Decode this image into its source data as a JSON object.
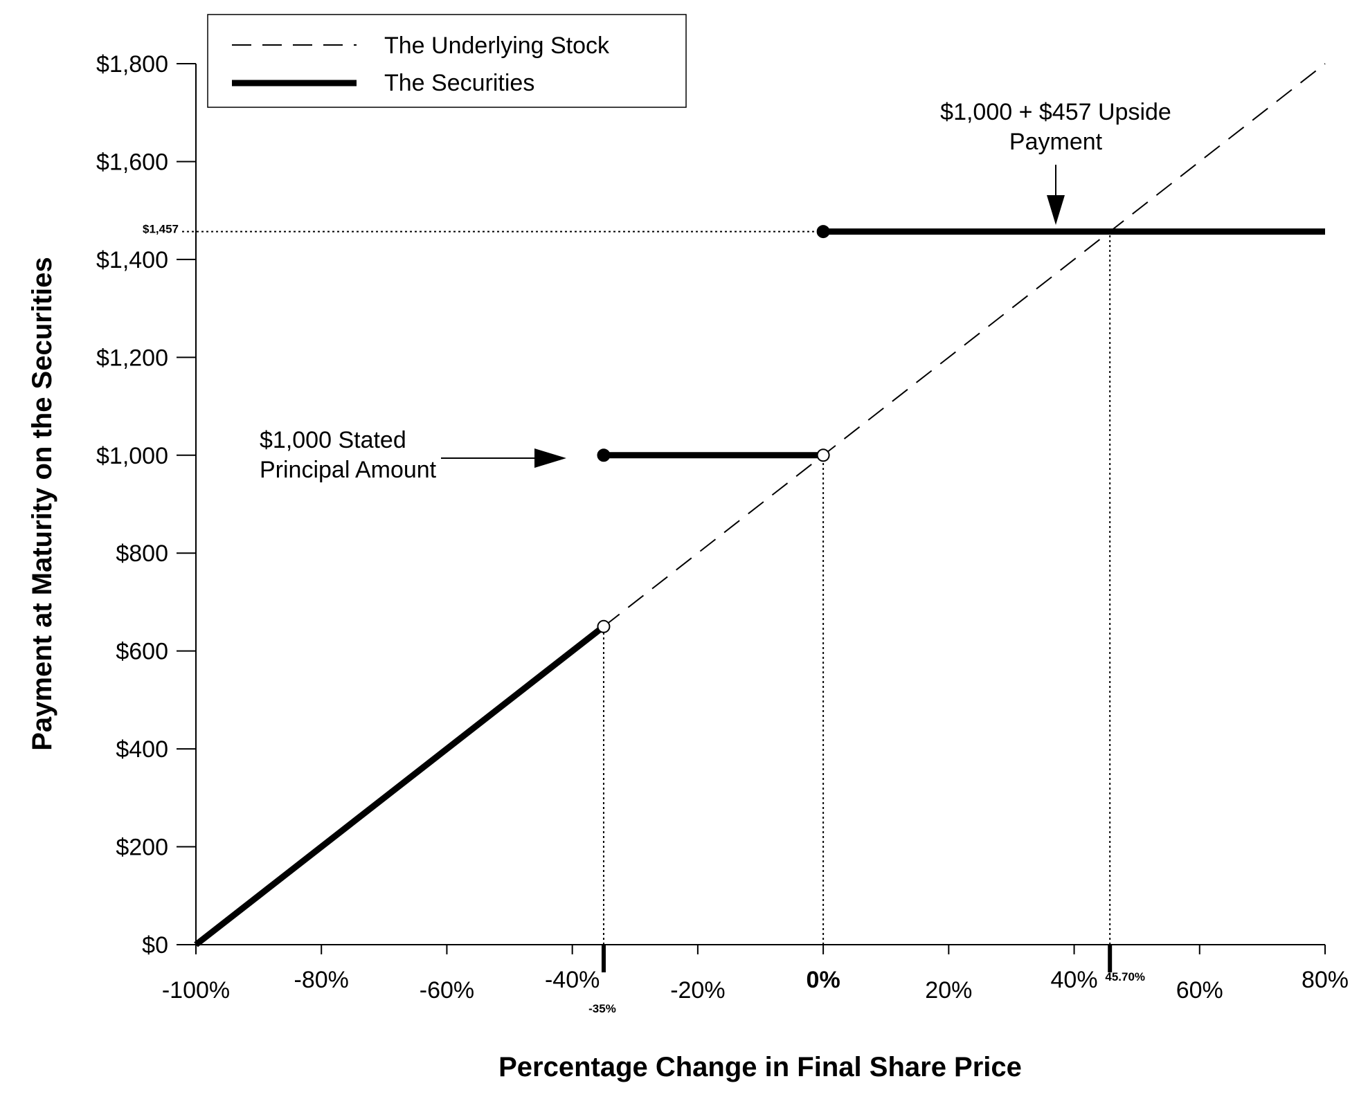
{
  "chart_data": {
    "type": "line",
    "title": "",
    "xlabel": "Percentage Change in Final Share Price",
    "ylabel": "Payment at Maturity on the Securities",
    "xlim": [
      -100,
      80
    ],
    "ylim": [
      0,
      1800
    ],
    "grid": false,
    "legend_position": "top-left",
    "x_ticks": [
      {
        "value": -100,
        "label": "-100%"
      },
      {
        "value": -80,
        "label": "-80%"
      },
      {
        "value": -60,
        "label": "-60%"
      },
      {
        "value": -40,
        "label": "-40%"
      },
      {
        "value": -20,
        "label": "-20%"
      },
      {
        "value": 0,
        "label": "0%"
      },
      {
        "value": 20,
        "label": "20%"
      },
      {
        "value": 40,
        "label": "40%"
      },
      {
        "value": 60,
        "label": "60%"
      },
      {
        "value": 80,
        "label": "80%"
      }
    ],
    "y_ticks": [
      {
        "value": 0,
        "label": "$0"
      },
      {
        "value": 200,
        "label": "$200"
      },
      {
        "value": 400,
        "label": "$400"
      },
      {
        "value": 600,
        "label": "$600"
      },
      {
        "value": 800,
        "label": "$800"
      },
      {
        "value": 1000,
        "label": "$1,000"
      },
      {
        "value": 1200,
        "label": "$1,200"
      },
      {
        "value": 1400,
        "label": "$1,400"
      },
      {
        "value": 1600,
        "label": "$1,600"
      },
      {
        "value": 1800,
        "label": "$1,800"
      }
    ],
    "extra_x_ticks": [
      {
        "value": -35,
        "label": "-35%"
      },
      {
        "value": 45.7,
        "label": "45.70%"
      }
    ],
    "extra_y_ticks": [
      {
        "value": 1457,
        "label": "$1,457"
      }
    ],
    "series": [
      {
        "name": "The Underlying Stock",
        "style": "dashed",
        "points": [
          [
            -100,
            0
          ],
          [
            80,
            1800
          ]
        ]
      },
      {
        "name": "The Securities",
        "style": "thick",
        "segments": [
          {
            "points": [
              [
                -100,
                0
              ],
              [
                -35,
                650
              ]
            ],
            "end_markers": [
              "none",
              "open"
            ]
          },
          {
            "points": [
              [
                -35,
                1000
              ],
              [
                0,
                1000
              ]
            ],
            "end_markers": [
              "filled",
              "open"
            ]
          },
          {
            "points": [
              [
                0,
                1457
              ],
              [
                80,
                1457
              ]
            ],
            "end_markers": [
              "filled",
              "none"
            ]
          }
        ]
      }
    ],
    "reference_lines": [
      {
        "type": "vertical",
        "x": -35,
        "y_to": 650,
        "style": "dotted"
      },
      {
        "type": "vertical",
        "x": 0,
        "y_to": 1000,
        "style": "dotted"
      },
      {
        "type": "vertical",
        "x": 45.7,
        "y_to": 1457,
        "style": "dotted"
      },
      {
        "type": "horizontal",
        "y": 1457,
        "x_to": 0,
        "style": "dotted"
      }
    ],
    "annotations": [
      {
        "lines": [
          "$1,000 Stated",
          "Principal Amount"
        ],
        "arrow_to": [
          -35,
          1000
        ]
      },
      {
        "lines": [
          "$1,000 + $457 Upside",
          "Payment"
        ],
        "arrow_to": [
          37,
          1457
        ]
      }
    ]
  }
}
